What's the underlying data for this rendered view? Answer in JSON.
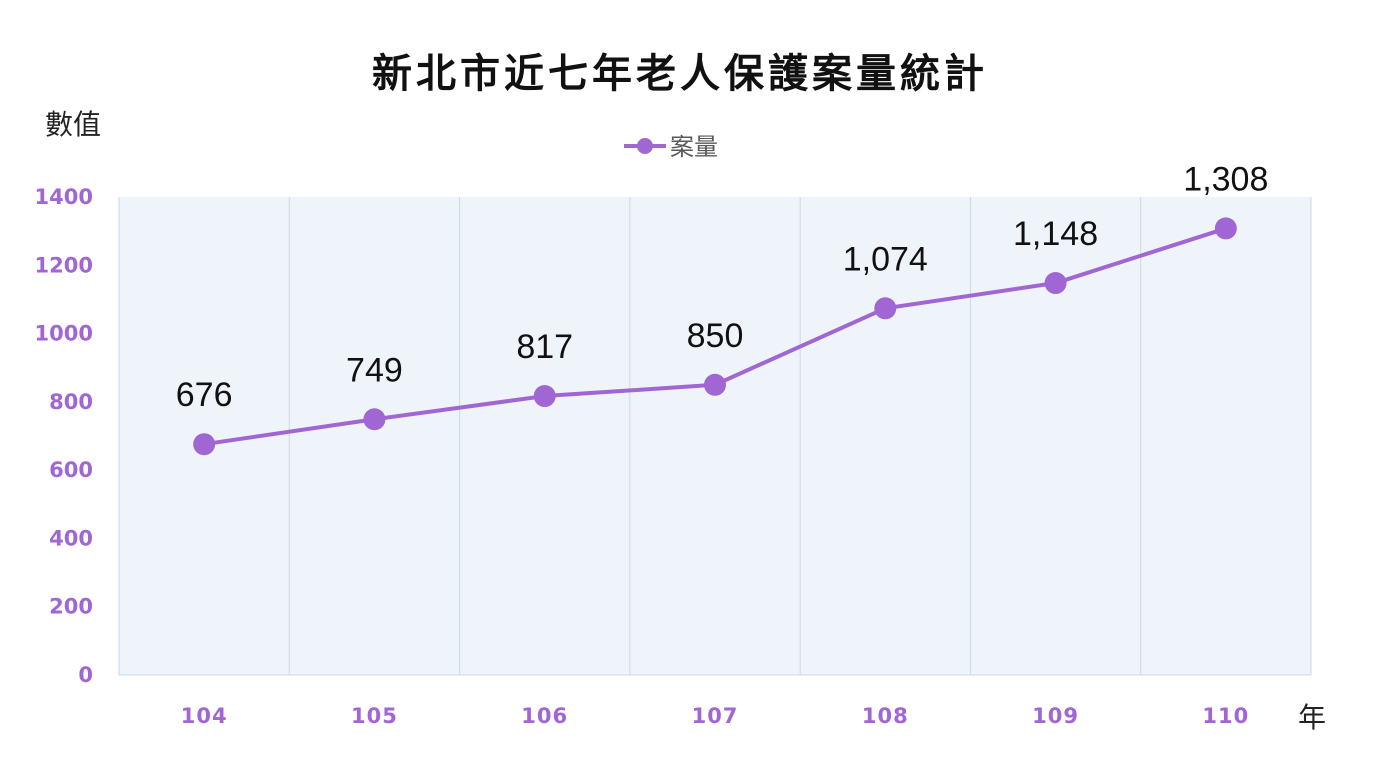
{
  "chart_data": {
    "type": "line",
    "title": "新北市近七年老人保護案量統計",
    "ylabel": "數值",
    "xlabel": "年",
    "categories": [
      "104",
      "105",
      "106",
      "107",
      "108",
      "109",
      "110"
    ],
    "series": [
      {
        "name": "案量",
        "values": [
          676,
          749,
          817,
          850,
          1074,
          1148,
          1308
        ],
        "data_labels": [
          "676",
          "749",
          "817",
          "850",
          "1,074",
          "1,148",
          "1,308"
        ]
      }
    ],
    "yticks": [
      "0",
      "200",
      "400",
      "600",
      "800",
      "1000",
      "1200",
      "1400"
    ],
    "ylim": [
      0,
      1400
    ],
    "grid": "vertical",
    "legend_position": "top-center",
    "colors": {
      "series": "#a066d3",
      "tick_labels": "#a066d3",
      "plot_background": "#eff4fb",
      "grid": "#c9d9e8",
      "axis": "#c9d9e8"
    }
  }
}
